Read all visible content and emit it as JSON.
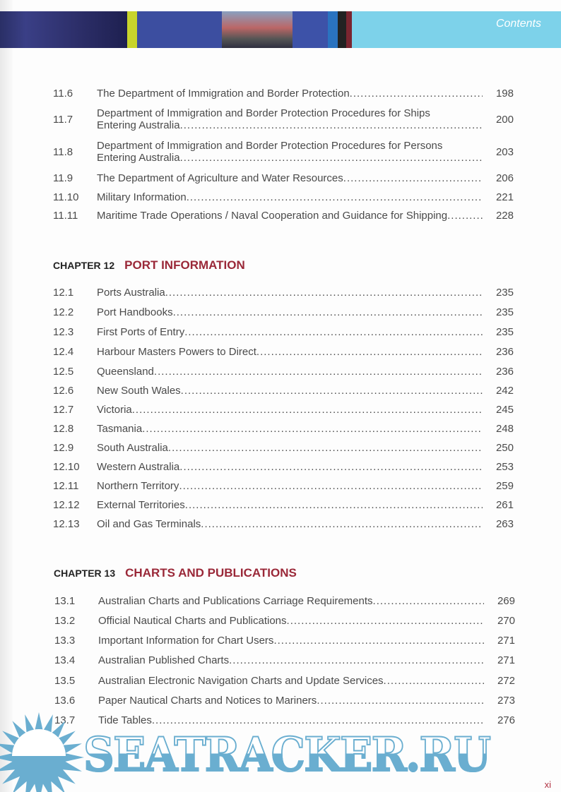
{
  "header": {
    "label": "Contents"
  },
  "section11": {
    "rows": [
      {
        "num": "11.6",
        "title": "The Department of Immigration and Border Protection",
        "page": "198"
      },
      {
        "num": "11.7",
        "title1": "Department of Immigration and Border Protection  Procedures for  Ships",
        "title2": "Entering Australia",
        "page": "200"
      },
      {
        "num": "11.8",
        "title1": "Department of Immigration and Border Protection Procedures for  Persons",
        "title2": "Entering Australia",
        "page": "203"
      },
      {
        "num": "11.9",
        "title": "The Department of Agriculture and Water Resources",
        "page": "206"
      },
      {
        "num": "11.10",
        "title": "Military Information",
        "page": "221"
      },
      {
        "num": "11.11",
        "title": "Maritime Trade Operations / Naval Cooperation and Guidance for Shipping",
        "page": "228"
      }
    ]
  },
  "chapter12": {
    "number": "CHAPTER 12",
    "title": "PORT INFORMATION",
    "rows": [
      {
        "num": "12.1",
        "title": "Ports Australia ",
        "page": "235"
      },
      {
        "num": "12.2",
        "title": "Port Handbooks ",
        "page": "235"
      },
      {
        "num": "12.3",
        "title": "First Ports of Entry ",
        "page": "235"
      },
      {
        "num": "12.4",
        "title": "Harbour Masters Powers to Direct ",
        "page": "236"
      },
      {
        "num": "12.5",
        "title": "Queensland",
        "page": "236"
      },
      {
        "num": "12.6",
        "title": "New South Wales",
        "page": "242"
      },
      {
        "num": "12.7",
        "title": "Victoria ",
        "page": "245"
      },
      {
        "num": "12.8",
        "title": "Tasmania",
        "page": "248"
      },
      {
        "num": "12.9",
        "title": "South Australia",
        "page": "250"
      },
      {
        "num": "12.10",
        "title": "Western Australia",
        "page": "253"
      },
      {
        "num": "12.11",
        "title": "Northern Territory",
        "page": "259"
      },
      {
        "num": "12.12",
        "title": "External Territories",
        "page": "261"
      },
      {
        "num": "12.13",
        "title": "Oil and Gas Terminals",
        "page": "263"
      }
    ]
  },
  "chapter13": {
    "number": "CHAPTER 13",
    "title": "CHARTS AND PUBLICATIONS",
    "rows": [
      {
        "num": "13.1",
        "title": "Australian Charts and Publications Carriage Requirements ",
        "page": "269"
      },
      {
        "num": "13.2",
        "title": "Official Nautical Charts and Publications",
        "page": "270"
      },
      {
        "num": "13.3",
        "title": "Important Information for Chart Users",
        "page": "271"
      },
      {
        "num": "13.4",
        "title": "Australian Published Charts",
        "page": "271"
      },
      {
        "num": "13.5",
        "title": "Australian Electronic Navigation Charts and Update Services",
        "page": "272"
      },
      {
        "num": "13.6",
        "title": "Paper Nautical Charts and Notices to Mariners",
        "page": "273"
      },
      {
        "num": "13.7",
        "title": "Tide Tables",
        "page": "276"
      }
    ]
  },
  "watermark": {
    "text": "SEATRACKER.RU",
    "color": "#6aaed0"
  },
  "folio": "xi"
}
